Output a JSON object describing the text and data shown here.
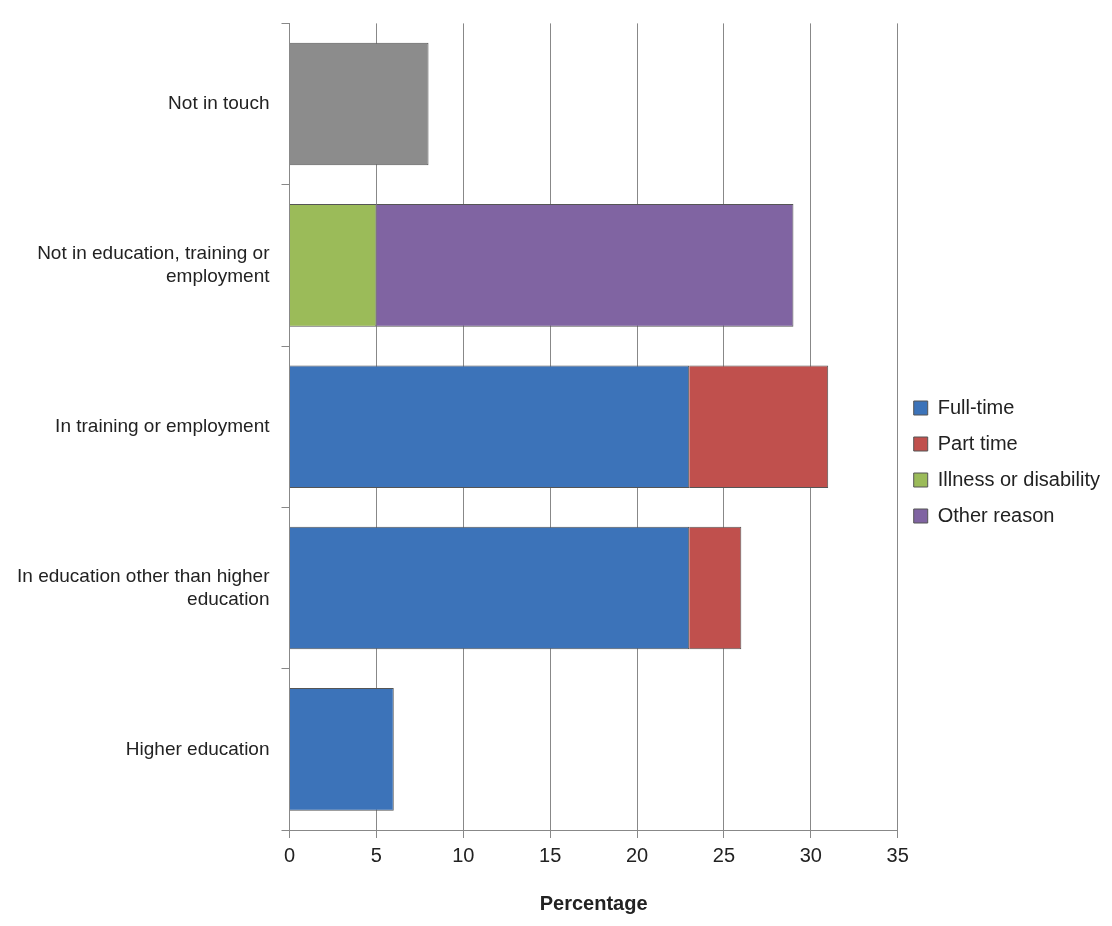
{
  "chart_data": {
    "type": "bar",
    "orientation": "horizontal",
    "stacked": true,
    "categories": [
      "Not in touch",
      "Not in education, training or employment",
      "In training or employment",
      "In education other than higher education",
      "Higher education"
    ],
    "series": [
      {
        "name": "Full-time",
        "color": "#3c73b9",
        "values": [
          null,
          null,
          23,
          23,
          6
        ]
      },
      {
        "name": "Part time",
        "color": "#c0504d",
        "values": [
          null,
          null,
          8,
          3,
          null
        ]
      },
      {
        "name": "Illness or disability",
        "color": "#9bbb59",
        "values": [
          null,
          5,
          null,
          null,
          null
        ]
      },
      {
        "name": "Other reason",
        "color": "#8064a2",
        "values": [
          null,
          24,
          null,
          null,
          null
        ]
      },
      {
        "color": "#8c8c8c",
        "values": [
          8,
          null,
          null,
          null,
          null
        ]
      }
    ],
    "xlabel": "Percentage",
    "xlim": [
      0,
      35
    ],
    "xticks": [
      0,
      5,
      10,
      15,
      20,
      25,
      30,
      35
    ],
    "grid": "x",
    "legend": "right"
  }
}
